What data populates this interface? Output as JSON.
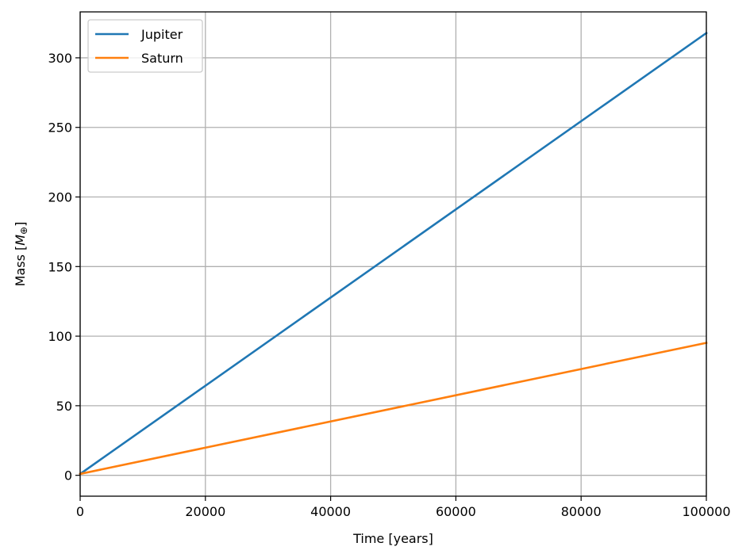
{
  "chart_data": {
    "type": "line",
    "xlabel": "Time [years]",
    "ylabel_prefix": "Mass [",
    "ylabel_symbol": "M",
    "ylabel_subscript": "⊕",
    "ylabel_suffix": "]",
    "xlim": [
      0,
      100000
    ],
    "ylim": [
      -15,
      333
    ],
    "xticks": [
      0,
      20000,
      40000,
      60000,
      80000,
      100000
    ],
    "xtick_labels": [
      "0",
      "20000",
      "40000",
      "60000",
      "80000",
      "100000"
    ],
    "yticks": [
      0,
      50,
      100,
      150,
      200,
      250,
      300
    ],
    "ytick_labels": [
      "0",
      "50",
      "100",
      "150",
      "200",
      "250",
      "300"
    ],
    "grid": true,
    "legend_position": "top-left",
    "series": [
      {
        "name": "Jupiter",
        "color": "#1f77b4",
        "x": [
          0,
          100000
        ],
        "y": [
          1,
          317.8
        ]
      },
      {
        "name": "Saturn",
        "color": "#ff7f0e",
        "x": [
          0,
          100000
        ],
        "y": [
          1,
          95.2
        ]
      }
    ]
  }
}
